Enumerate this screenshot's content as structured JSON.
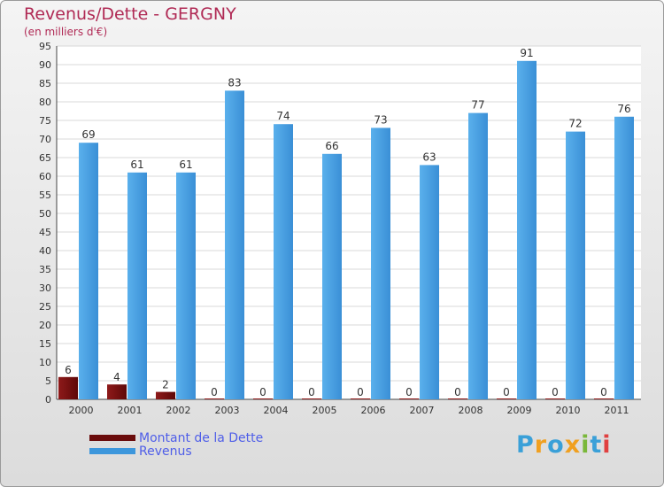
{
  "chart_data": {
    "type": "bar",
    "title": "Revenus/Dette - GERGNY",
    "subtitle": "(en milliers d'€)",
    "categories": [
      "2000",
      "2001",
      "2002",
      "2003",
      "2004",
      "2005",
      "2006",
      "2007",
      "2008",
      "2009",
      "2010",
      "2011"
    ],
    "series": [
      {
        "name": "Montant de la Dette",
        "color": "#7a1010",
        "values": [
          6,
          4,
          2,
          0,
          0,
          0,
          0,
          0,
          0,
          0,
          0,
          0
        ]
      },
      {
        "name": "Revenus",
        "color": "#3d97dc",
        "values": [
          69,
          61,
          61,
          83,
          74,
          66,
          73,
          63,
          77,
          91,
          72,
          76
        ]
      }
    ],
    "ylim": [
      0,
      95
    ],
    "ytick_step": 5,
    "grid": true,
    "legend_position": "bottom-left",
    "xlabel": "",
    "ylabel": ""
  },
  "legend": {
    "debt_label": "Montant de la Dette",
    "revenue_label": "Revenus"
  },
  "logo": {
    "letters": [
      "P",
      "r",
      "o",
      "x",
      "i",
      "t",
      "i"
    ],
    "colors": [
      "#3aa0d8",
      "#f0a020",
      "#3aa0d8",
      "#f0a020",
      "#7ab83a",
      "#3aa0d8",
      "#e04040"
    ]
  }
}
